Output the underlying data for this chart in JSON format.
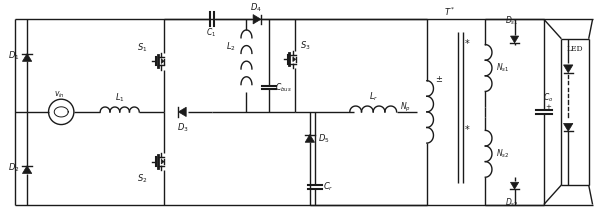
{
  "bg_color": "#ffffff",
  "line_color": "#1a1a1a",
  "lw": 1.0,
  "fig_width": 6.07,
  "fig_height": 2.13,
  "dpi": 100
}
